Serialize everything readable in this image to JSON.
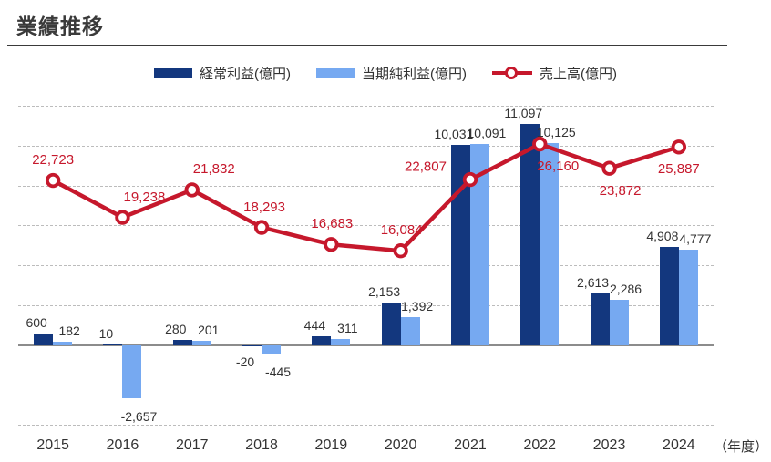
{
  "page": {
    "title": "業績推移",
    "x_axis_unit": "（年度）"
  },
  "legend": [
    {
      "label": "経常利益(億円)",
      "type": "bar",
      "color": "#13377e"
    },
    {
      "label": "当期純利益(億円)",
      "type": "bar",
      "color": "#76a9f1"
    },
    {
      "label": "売上高(億円)",
      "type": "line",
      "color": "#c6182c"
    }
  ],
  "chart_data": {
    "type": "bar+line",
    "title": "業績推移",
    "xlabel": "（年度）",
    "categories": [
      "2015",
      "2016",
      "2017",
      "2018",
      "2019",
      "2020",
      "2021",
      "2022",
      "2023",
      "2024"
    ],
    "series": [
      {
        "name": "経常利益(億円)",
        "type": "bar",
        "axis": "bar",
        "color": "#13377e",
        "values": [
          600,
          10,
          280,
          -20,
          444,
          2153,
          10031,
          11097,
          2613,
          4908
        ]
      },
      {
        "name": "当期純利益(億円)",
        "type": "bar",
        "axis": "bar",
        "color": "#76a9f1",
        "values": [
          182,
          -2657,
          201,
          -445,
          311,
          1392,
          10091,
          10125,
          2286,
          4777
        ]
      },
      {
        "name": "売上高(億円)",
        "type": "line",
        "axis": "line",
        "color": "#c6182c",
        "values": [
          22723,
          19238,
          21832,
          18293,
          16683,
          16084,
          22807,
          26160,
          23872,
          25887
        ],
        "label_positions": [
          "above",
          "above",
          "above",
          "above",
          "above",
          "above",
          "left",
          "below",
          "below",
          "below"
        ],
        "label_dx": [
          0,
          24,
          24,
          3,
          1,
          1,
          -26,
          20,
          12,
          0
        ]
      }
    ],
    "bar_axis": {
      "min": -4400,
      "max": 12600,
      "grid_from": -4000,
      "grid_to": 12000,
      "grid_step": 2000
    },
    "line_axis": {
      "min": -1100,
      "max": 30900
    },
    "grid": "horizontal-dashed",
    "legend_position": "top",
    "number_format": "thousands-comma"
  }
}
